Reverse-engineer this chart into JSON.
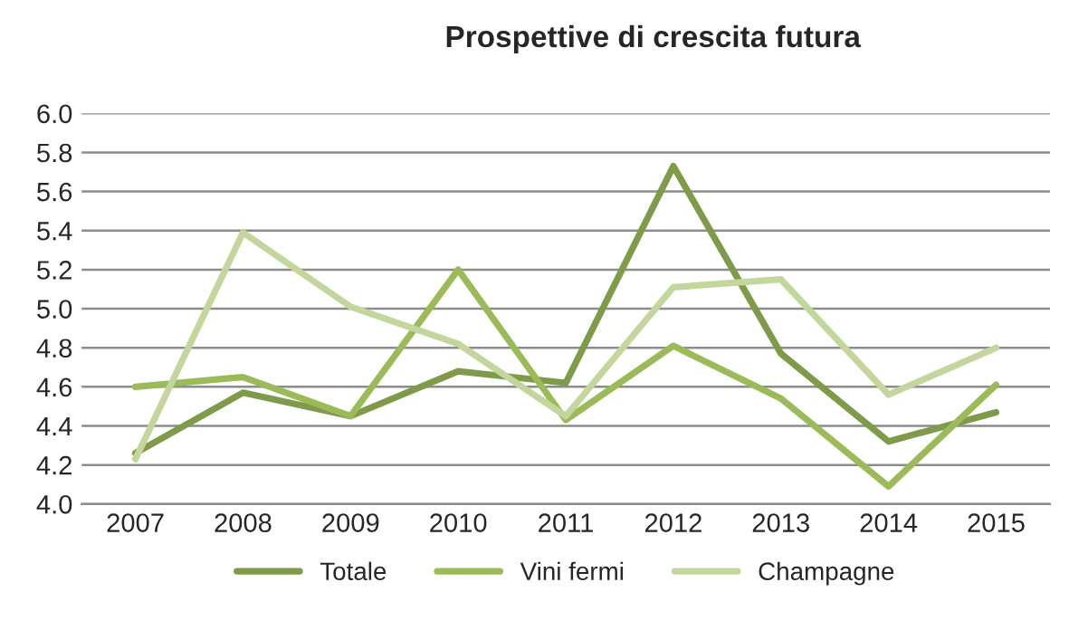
{
  "chart_data": {
    "type": "line",
    "title": "Prospettive di crescita futura",
    "categories": [
      "2007",
      "2008",
      "2009",
      "2010",
      "2011",
      "2012",
      "2013",
      "2014",
      "2015"
    ],
    "series": [
      {
        "name": "Totale",
        "color": "#7f9a48",
        "values": [
          4.26,
          4.57,
          4.45,
          4.68,
          4.62,
          5.73,
          4.77,
          4.32,
          4.47
        ]
      },
      {
        "name": "Vini fermi",
        "color": "#9bbb59",
        "values": [
          4.6,
          4.65,
          4.45,
          5.2,
          4.43,
          4.81,
          4.54,
          4.09,
          4.61
        ]
      },
      {
        "name": "Champagne",
        "color": "#c3d69b",
        "values": [
          4.23,
          5.39,
          5.01,
          4.82,
          4.45,
          5.11,
          5.15,
          4.56,
          4.8
        ]
      }
    ],
    "ylim": [
      4.0,
      6.0
    ],
    "yticks": [
      {
        "value": 4.0,
        "label": "4.0"
      },
      {
        "value": 4.2,
        "label": "4.2"
      },
      {
        "value": 4.4,
        "label": "4.4"
      },
      {
        "value": 4.6,
        "label": "4.6"
      },
      {
        "value": 4.8,
        "label": "4.8"
      },
      {
        "value": 5.0,
        "label": "5.0"
      },
      {
        "value": 5.2,
        "label": "5.2"
      },
      {
        "value": 5.4,
        "label": "5.4"
      },
      {
        "value": 5.6,
        "label": "5.6"
      },
      {
        "value": 5.8,
        "label": "5.8"
      },
      {
        "value": 6.0,
        "label": "6.0"
      }
    ],
    "grid": "y",
    "legend": "bottom",
    "marker": "none",
    "line_style": "solid"
  }
}
